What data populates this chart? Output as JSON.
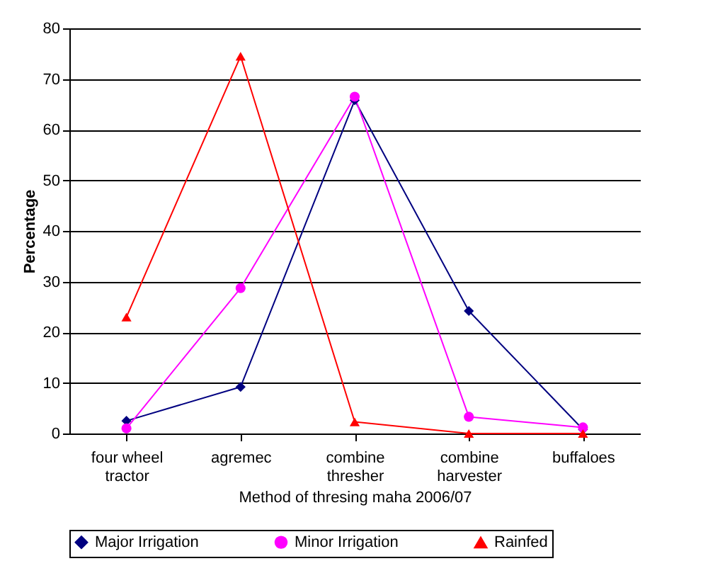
{
  "chart_data": {
    "type": "line",
    "xlabel": "Method of thresing maha 2006/07",
    "ylabel": "Percentage",
    "categories": [
      "four wheel tractor",
      "agremec",
      "combine thresher",
      "combine harvester",
      "buffaloes"
    ],
    "series": [
      {
        "name": "Major Irrigation",
        "color": "#000080",
        "marker": "diamond",
        "values": [
          2.5,
          9.2,
          65.8,
          24.2,
          0.8
        ]
      },
      {
        "name": "Minor Irrigation",
        "color": "#ff00ff",
        "marker": "circle",
        "values": [
          1.0,
          28.7,
          66.5,
          3.3,
          1.2
        ]
      },
      {
        "name": "Rainfed",
        "color": "#ff0000",
        "marker": "triangle",
        "values": [
          23.0,
          74.5,
          2.3,
          0,
          0
        ]
      }
    ],
    "ylim": [
      0,
      80
    ],
    "yticks": [
      0,
      10,
      20,
      30,
      40,
      50,
      60,
      70,
      80
    ],
    "grid": "y",
    "legend": "bottom"
  }
}
